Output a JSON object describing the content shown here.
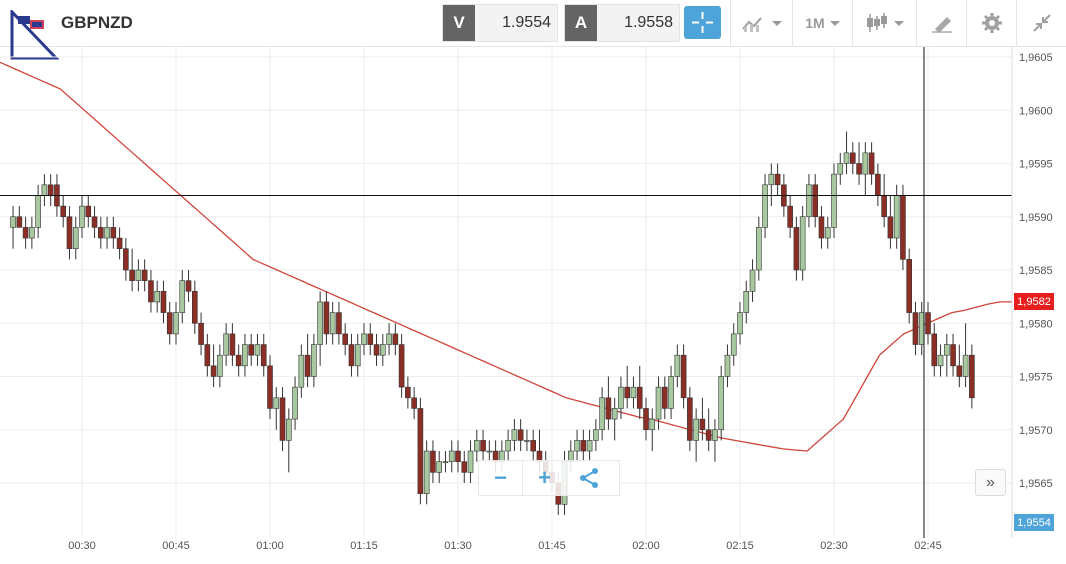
{
  "symbol": "GBPNZD",
  "bid": {
    "tag": "V",
    "value": "1.9554"
  },
  "ask": {
    "tag": "A",
    "value": "1.9558"
  },
  "toolbar": {
    "timeframe": "1M",
    "icons": [
      "crosshair-icon",
      "chart-type-icon",
      "candlestick-icon",
      "drawing-tools-icon",
      "gear-icon",
      "collapse-icon"
    ]
  },
  "colors": {
    "bull": "#a8c9a0",
    "bear": "#8b2e25",
    "ma": "#d0453a",
    "accent": "#4ea3d8",
    "last_price": "#e61e1e"
  },
  "badges": {
    "last_price": "1,9582",
    "current_price": "1,9554"
  },
  "zoom": {
    "minus": "−",
    "plus": "+"
  },
  "scroll_label": "»",
  "chart_data": {
    "type": "candlestick",
    "y_axis": {
      "min": 1.9561,
      "max": 1.9605,
      "ticks": [
        "1,9605",
        "1,9600",
        "1,9595",
        "1,9590",
        "1,9585",
        "1,9580",
        "1,9575",
        "1,9570",
        "1,9565"
      ]
    },
    "x_axis": {
      "ticks": [
        "00:30",
        "00:45",
        "01:00",
        "01:15",
        "01:30",
        "01:45",
        "02:00",
        "02:15",
        "02:30",
        "02:45"
      ],
      "minutes_per_bar": 1
    },
    "crosshair": {
      "price": 1.9592,
      "time": "02:45"
    },
    "candles": [
      [
        1.9589,
        1.9591,
        1.9587,
        1.959
      ],
      [
        1.959,
        1.9591,
        1.9589,
        1.9589
      ],
      [
        1.9589,
        1.959,
        1.9587,
        1.9588
      ],
      [
        1.9588,
        1.959,
        1.9587,
        1.9589
      ],
      [
        1.9589,
        1.9593,
        1.9588,
        1.9592
      ],
      [
        1.9592,
        1.9594,
        1.9591,
        1.9593
      ],
      [
        1.9593,
        1.9594,
        1.9591,
        1.9592
      ],
      [
        1.9593,
        1.9594,
        1.959,
        1.9591
      ],
      [
        1.9591,
        1.9592,
        1.9589,
        1.959
      ],
      [
        1.959,
        1.9591,
        1.9586,
        1.9587
      ],
      [
        1.9587,
        1.959,
        1.9586,
        1.9589
      ],
      [
        1.9589,
        1.9592,
        1.9588,
        1.9591
      ],
      [
        1.9591,
        1.9592,
        1.9589,
        1.959
      ],
      [
        1.959,
        1.9591,
        1.9588,
        1.9589
      ],
      [
        1.9589,
        1.959,
        1.9587,
        1.9588
      ],
      [
        1.9588,
        1.959,
        1.9587,
        1.9589
      ],
      [
        1.9589,
        1.959,
        1.9587,
        1.9588
      ],
      [
        1.9588,
        1.9589,
        1.9586,
        1.9587
      ],
      [
        1.9587,
        1.9588,
        1.9584,
        1.9585
      ],
      [
        1.9585,
        1.9587,
        1.9583,
        1.9584
      ],
      [
        1.9584,
        1.9586,
        1.9583,
        1.9585
      ],
      [
        1.9585,
        1.9586,
        1.9583,
        1.9584
      ],
      [
        1.9584,
        1.9585,
        1.9581,
        1.9582
      ],
      [
        1.9582,
        1.9584,
        1.9581,
        1.9583
      ],
      [
        1.9583,
        1.9584,
        1.958,
        1.9581
      ],
      [
        1.9581,
        1.9582,
        1.9578,
        1.9579
      ],
      [
        1.9579,
        1.9582,
        1.9578,
        1.9581
      ],
      [
        1.9581,
        1.9585,
        1.958,
        1.9584
      ],
      [
        1.9584,
        1.9585,
        1.9582,
        1.9583
      ],
      [
        1.9583,
        1.9584,
        1.9579,
        1.958
      ],
      [
        1.958,
        1.9581,
        1.9577,
        1.9578
      ],
      [
        1.9578,
        1.9579,
        1.9575,
        1.9576
      ],
      [
        1.9576,
        1.9578,
        1.9574,
        1.9575
      ],
      [
        1.9575,
        1.9578,
        1.9574,
        1.9577
      ],
      [
        1.9577,
        1.958,
        1.9576,
        1.9579
      ],
      [
        1.9579,
        1.958,
        1.9576,
        1.9577
      ],
      [
        1.9577,
        1.9578,
        1.9575,
        1.9576
      ],
      [
        1.9576,
        1.9579,
        1.9575,
        1.9578
      ],
      [
        1.9578,
        1.9579,
        1.9576,
        1.9577
      ],
      [
        1.9577,
        1.9579,
        1.9576,
        1.9578
      ],
      [
        1.9578,
        1.9579,
        1.9575,
        1.9576
      ],
      [
        1.9576,
        1.9577,
        1.9571,
        1.9572
      ],
      [
        1.9572,
        1.9574,
        1.957,
        1.9573
      ],
      [
        1.9573,
        1.9574,
        1.9568,
        1.9569
      ],
      [
        1.9569,
        1.9572,
        1.9566,
        1.9571
      ],
      [
        1.9571,
        1.9575,
        1.957,
        1.9574
      ],
      [
        1.9574,
        1.9578,
        1.9573,
        1.9577
      ],
      [
        1.9577,
        1.9579,
        1.9574,
        1.9575
      ],
      [
        1.9575,
        1.9579,
        1.9574,
        1.9578
      ],
      [
        1.9578,
        1.9583,
        1.9576,
        1.9582
      ],
      [
        1.9582,
        1.9583,
        1.9578,
        1.9579
      ],
      [
        1.9579,
        1.9582,
        1.9578,
        1.9581
      ],
      [
        1.9581,
        1.9582,
        1.9578,
        1.9579
      ],
      [
        1.9579,
        1.958,
        1.9577,
        1.9578
      ],
      [
        1.9578,
        1.9579,
        1.9575,
        1.9576
      ],
      [
        1.9576,
        1.9579,
        1.9575,
        1.9578
      ],
      [
        1.9578,
        1.958,
        1.9577,
        1.9579
      ],
      [
        1.9579,
        1.958,
        1.9577,
        1.9578
      ],
      [
        1.9578,
        1.9579,
        1.9576,
        1.9577
      ],
      [
        1.9577,
        1.9579,
        1.9576,
        1.9578
      ],
      [
        1.9578,
        1.958,
        1.9577,
        1.9579
      ],
      [
        1.9579,
        1.958,
        1.9577,
        1.9578
      ],
      [
        1.9578,
        1.9579,
        1.9573,
        1.9574
      ],
      [
        1.9574,
        1.9575,
        1.9572,
        1.9573
      ],
      [
        1.9573,
        1.9574,
        1.9571,
        1.9572
      ],
      [
        1.9572,
        1.9573,
        1.9563,
        1.9564
      ],
      [
        1.9564,
        1.9569,
        1.9563,
        1.9568
      ],
      [
        1.9568,
        1.9569,
        1.9565,
        1.9566
      ],
      [
        1.9566,
        1.9568,
        1.9565,
        1.9567
      ],
      [
        1.9567,
        1.9568,
        1.9566,
        1.9567
      ],
      [
        1.9567,
        1.9569,
        1.9566,
        1.9568
      ],
      [
        1.9568,
        1.9569,
        1.9566,
        1.9567
      ],
      [
        1.9567,
        1.9568,
        1.9565,
        1.9566
      ],
      [
        1.9566,
        1.9569,
        1.9565,
        1.9568
      ],
      [
        1.9568,
        1.957,
        1.9567,
        1.9569
      ],
      [
        1.9569,
        1.957,
        1.9567,
        1.9568
      ],
      [
        1.9568,
        1.9569,
        1.9567,
        1.9568
      ],
      [
        1.9568,
        1.9569,
        1.9566,
        1.9567
      ],
      [
        1.9567,
        1.9569,
        1.9566,
        1.9568
      ],
      [
        1.9568,
        1.957,
        1.9567,
        1.9569
      ],
      [
        1.9569,
        1.9571,
        1.9568,
        1.957
      ],
      [
        1.957,
        1.9571,
        1.9568,
        1.9569
      ],
      [
        1.9569,
        1.957,
        1.9568,
        1.9569
      ],
      [
        1.9569,
        1.957,
        1.9567,
        1.9568
      ],
      [
        1.9568,
        1.957,
        1.9566,
        1.9567
      ],
      [
        1.9567,
        1.9568,
        1.9565,
        1.9566
      ],
      [
        1.9566,
        1.9567,
        1.9564,
        1.9565
      ],
      [
        1.9565,
        1.9566,
        1.9562,
        1.9563
      ],
      [
        1.9563,
        1.9568,
        1.9562,
        1.9567
      ],
      [
        1.9567,
        1.9569,
        1.9566,
        1.9568
      ],
      [
        1.9568,
        1.957,
        1.9567,
        1.9569
      ],
      [
        1.9569,
        1.957,
        1.9567,
        1.9568
      ],
      [
        1.9568,
        1.957,
        1.9567,
        1.9569
      ],
      [
        1.9569,
        1.9571,
        1.9568,
        1.957
      ],
      [
        1.957,
        1.9574,
        1.9569,
        1.9573
      ],
      [
        1.9573,
        1.9575,
        1.957,
        1.9571
      ],
      [
        1.9571,
        1.9573,
        1.9569,
        1.9572
      ],
      [
        1.9572,
        1.9575,
        1.9571,
        1.9574
      ],
      [
        1.9574,
        1.9576,
        1.9572,
        1.9573
      ],
      [
        1.9573,
        1.9575,
        1.9572,
        1.9574
      ],
      [
        1.9574,
        1.9576,
        1.9571,
        1.9572
      ],
      [
        1.9572,
        1.9573,
        1.9569,
        1.957
      ],
      [
        1.957,
        1.9572,
        1.9568,
        1.9571
      ],
      [
        1.9571,
        1.9575,
        1.957,
        1.9574
      ],
      [
        1.9574,
        1.9575,
        1.9571,
        1.9572
      ],
      [
        1.9572,
        1.9576,
        1.9571,
        1.9575
      ],
      [
        1.9575,
        1.9578,
        1.9574,
        1.9577
      ],
      [
        1.9577,
        1.9578,
        1.9572,
        1.9573
      ],
      [
        1.9573,
        1.9574,
        1.9568,
        1.9569
      ],
      [
        1.9569,
        1.9572,
        1.9567,
        1.9571
      ],
      [
        1.9571,
        1.9573,
        1.9569,
        1.957
      ],
      [
        1.957,
        1.9572,
        1.9568,
        1.9569
      ],
      [
        1.9569,
        1.9571,
        1.9567,
        1.957
      ],
      [
        1.957,
        1.9576,
        1.9569,
        1.9575
      ],
      [
        1.9575,
        1.9578,
        1.9574,
        1.9577
      ],
      [
        1.9577,
        1.958,
        1.9576,
        1.9579
      ],
      [
        1.9579,
        1.9582,
        1.9578,
        1.9581
      ],
      [
        1.9581,
        1.9584,
        1.958,
        1.9583
      ],
      [
        1.9583,
        1.9586,
        1.9582,
        1.9585
      ],
      [
        1.9585,
        1.959,
        1.9584,
        1.9589
      ],
      [
        1.9589,
        1.9594,
        1.9588,
        1.9593
      ],
      [
        1.9593,
        1.9595,
        1.9591,
        1.9594
      ],
      [
        1.9594,
        1.9595,
        1.9592,
        1.9593
      ],
      [
        1.9593,
        1.9594,
        1.959,
        1.9591
      ],
      [
        1.9591,
        1.9592,
        1.9588,
        1.9589
      ],
      [
        1.9589,
        1.959,
        1.9584,
        1.9585
      ],
      [
        1.9585,
        1.9591,
        1.9584,
        1.959
      ],
      [
        1.959,
        1.9594,
        1.9589,
        1.9593
      ],
      [
        1.9593,
        1.9594,
        1.9589,
        1.959
      ],
      [
        1.959,
        1.9591,
        1.9587,
        1.9588
      ],
      [
        1.9588,
        1.959,
        1.9587,
        1.9589
      ],
      [
        1.9589,
        1.9595,
        1.9588,
        1.9594
      ],
      [
        1.9594,
        1.9596,
        1.9593,
        1.9595
      ],
      [
        1.9595,
        1.9598,
        1.9594,
        1.9596
      ],
      [
        1.9596,
        1.9597,
        1.9594,
        1.9595
      ],
      [
        1.9595,
        1.9597,
        1.9593,
        1.9594
      ],
      [
        1.9594,
        1.9597,
        1.9592,
        1.9596
      ],
      [
        1.9596,
        1.9597,
        1.9593,
        1.9594
      ],
      [
        1.9594,
        1.9595,
        1.9591,
        1.9592
      ],
      [
        1.9592,
        1.9594,
        1.9589,
        1.959
      ],
      [
        1.959,
        1.9592,
        1.9587,
        1.9588
      ],
      [
        1.9588,
        1.9593,
        1.9587,
        1.9592
      ],
      [
        1.9592,
        1.9593,
        1.9585,
        1.9586
      ],
      [
        1.9586,
        1.9587,
        1.958,
        1.9581
      ],
      [
        1.9581,
        1.9582,
        1.9577,
        1.9578
      ],
      [
        1.9578,
        1.9582,
        1.9577,
        1.9581
      ],
      [
        1.9581,
        1.9582,
        1.9578,
        1.9579
      ],
      [
        1.9579,
        1.958,
        1.9575,
        1.9576
      ],
      [
        1.9576,
        1.9578,
        1.9575,
        1.9577
      ],
      [
        1.9577,
        1.9579,
        1.9575,
        1.9578
      ],
      [
        1.9578,
        1.9579,
        1.9575,
        1.9576
      ],
      [
        1.9576,
        1.9578,
        1.9574,
        1.9575
      ],
      [
        1.9575,
        1.958,
        1.9574,
        1.9577
      ],
      [
        1.9577,
        1.9578,
        1.9572,
        1.9573
      ]
    ],
    "moving_average": [
      1.96045,
      1.9604,
      1.96035,
      1.9603,
      1.96025,
      1.9602,
      1.9601,
      1.96,
      1.9599,
      1.9598,
      1.9597,
      1.9596,
      1.9595,
      1.9594,
      1.9593,
      1.9592,
      1.9591,
      1.959,
      1.9589,
      1.9588,
      1.9587,
      1.9586,
      1.95855,
      1.9585,
      1.95845,
      1.9584,
      1.95835,
      1.9583,
      1.95825,
      1.9582,
      1.95815,
      1.9581,
      1.95805,
      1.958,
      1.95795,
      1.9579,
      1.95785,
      1.9578,
      1.95775,
      1.9577,
      1.95765,
      1.9576,
      1.95755,
      1.9575,
      1.95745,
      1.9574,
      1.95735,
      1.9573,
      1.95727,
      1.95724,
      1.95721,
      1.95718,
      1.95715,
      1.95712,
      1.9571,
      1.95707,
      1.95704,
      1.95701,
      1.95698,
      1.95695,
      1.95692,
      1.9569,
      1.95688,
      1.95686,
      1.95684,
      1.95682,
      1.95681,
      1.9568,
      1.9569,
      1.957,
      1.9571,
      1.9573,
      1.9575,
      1.9577,
      1.9578,
      1.9579,
      1.95795,
      1.958,
      1.95805,
      1.9581,
      1.95812,
      1.95815,
      1.95818,
      1.9582,
      1.9582
    ]
  }
}
